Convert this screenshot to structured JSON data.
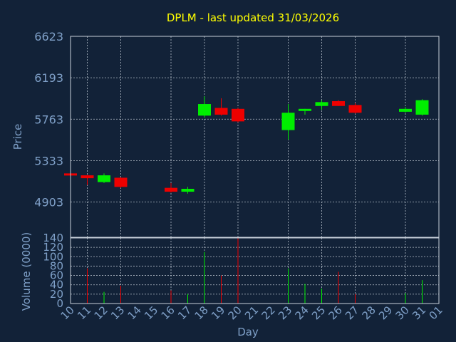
{
  "chart_data": {
    "type": "candlestick",
    "title": "DPLM - last updated 31/03/2026",
    "xlabel": "Day",
    "colors": {
      "background": "#122238",
      "grid": "#b4bdc8",
      "axis_text": "#7fa0c8",
      "title": "#ffff00",
      "up": "#00ee00",
      "down": "#ee0000"
    },
    "price_panel": {
      "ylabel": "Price",
      "ylim": [
        4537,
        6623
      ],
      "yticks": [
        "6623",
        "6193",
        "5763",
        "5333",
        "4903"
      ],
      "ytick_values": [
        6623,
        6193,
        5763,
        5333,
        4903
      ]
    },
    "volume_panel": {
      "ylabel": "Volume (0000)",
      "ylim": [
        0,
        140
      ],
      "yticks": [
        "140",
        "120",
        "100",
        "80",
        "60",
        "40",
        "20",
        "0"
      ],
      "ytick_values": [
        140,
        120,
        100,
        80,
        60,
        40,
        20,
        0
      ]
    },
    "x_labels": [
      "10",
      "11",
      "12",
      "13",
      "14",
      "15",
      "16",
      "17",
      "18",
      "19",
      "20",
      "21",
      "22",
      "23",
      "24",
      "25",
      "26",
      "27",
      "28",
      "29",
      "30",
      "31",
      "01"
    ],
    "x_grid_days": [
      "11",
      "13",
      "16",
      "18",
      "20",
      "23",
      "25",
      "27",
      "30"
    ],
    "candles": [
      {
        "day": "10",
        "open": 5200,
        "high": 5210,
        "low": 5190,
        "close": 5185,
        "volume": 0
      },
      {
        "day": "11",
        "open": 5180,
        "high": 5185,
        "low": 5080,
        "close": 5150,
        "volume": 75
      },
      {
        "day": "12",
        "open": 5110,
        "high": 5200,
        "low": 5100,
        "close": 5180,
        "volume": 25
      },
      {
        "day": "13",
        "open": 5155,
        "high": 5160,
        "low": 5050,
        "close": 5060,
        "volume": 38
      },
      {
        "day": "16",
        "open": 5050,
        "high": 5100,
        "low": 5000,
        "close": 5010,
        "volume": 28
      },
      {
        "day": "17",
        "open": 5010,
        "high": 5060,
        "low": 4990,
        "close": 5040,
        "volume": 20
      },
      {
        "day": "18",
        "open": 5800,
        "high": 6000,
        "low": 5780,
        "close": 5920,
        "volume": 110
      },
      {
        "day": "19",
        "open": 5880,
        "high": 5980,
        "low": 5800,
        "close": 5810,
        "volume": 60
      },
      {
        "day": "20",
        "open": 5870,
        "high": 5880,
        "low": 5730,
        "close": 5740,
        "volume": 140
      },
      {
        "day": "23",
        "open": 5650,
        "high": 5920,
        "low": 5550,
        "close": 5830,
        "volume": 75
      },
      {
        "day": "24",
        "open": 5860,
        "high": 5870,
        "low": 5810,
        "close": 5870,
        "volume": 42
      },
      {
        "day": "25",
        "open": 5900,
        "high": 5960,
        "low": 5860,
        "close": 5940,
        "volume": 32
      },
      {
        "day": "26",
        "open": 5950,
        "high": 5960,
        "low": 5900,
        "close": 5900,
        "volume": 68
      },
      {
        "day": "27",
        "open": 5910,
        "high": 5930,
        "low": 5820,
        "close": 5830,
        "volume": 20
      },
      {
        "day": "30",
        "open": 5840,
        "high": 5890,
        "low": 5830,
        "close": 5870,
        "volume": 22
      },
      {
        "day": "31",
        "open": 5810,
        "high": 5970,
        "low": 5800,
        "close": 5960,
        "volume": 50
      }
    ]
  }
}
